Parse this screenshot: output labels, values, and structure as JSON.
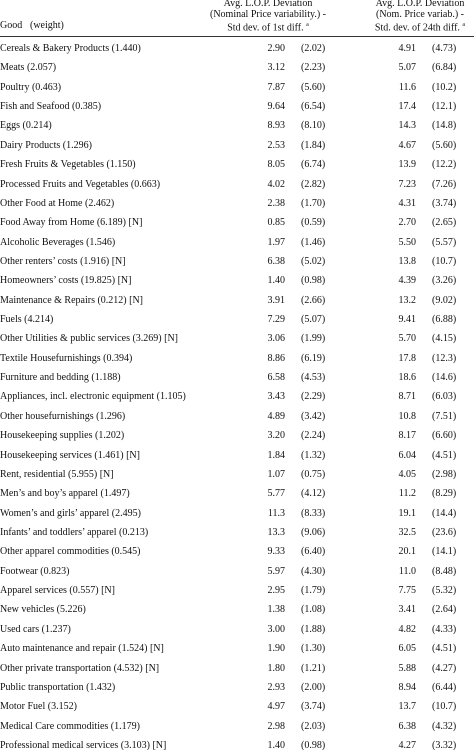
{
  "header": {
    "good": "Good",
    "weight": "(weight)",
    "col2": [
      "Avg. L.O.P. Deviation",
      "(Nominal Price variability.) -",
      "Std dev. of 1st diff."
    ],
    "col2_note": "a",
    "col3": [
      "Avg. L.O.P. Deviation",
      "(Nom. Price variab.) -",
      "Std. dev. of 24th diff."
    ],
    "col3_note": "a"
  },
  "table": {
    "rows": [
      [
        "Cereals & Bakery Products (1.440)",
        "2.90",
        "(2.02)",
        "4.91",
        "(4.73)"
      ],
      [
        "Meats (2.057)",
        "3.12",
        "(2.23)",
        "5.07",
        "(6.84)"
      ],
      [
        "Poultry (0.463)",
        "7.87",
        "(5.60)",
        "11.6",
        "(10.2)"
      ],
      [
        "Fish and Seafood (0.385)",
        "9.64",
        "(6.54)",
        "17.4",
        "(12.1)"
      ],
      [
        "Eggs (0.214)",
        "8.93",
        "(8.10)",
        "14.3",
        "(14.8)"
      ],
      [
        "Dairy Products (1.296)",
        "2.53",
        "(1.84)",
        "4.67",
        "(5.60)"
      ],
      [
        "Fresh Fruits & Vegetables (1.150)",
        "8.05",
        "(6.74)",
        "13.9",
        "(12.2)"
      ],
      [
        "Processed Fruits and Vegetables (0.663)",
        "4.02",
        "(2.82)",
        "7.23",
        "(7.26)"
      ],
      [
        "Other Food at Home (2.462)",
        "2.38",
        "(1.70)",
        "4.31",
        "(3.74)"
      ],
      [
        "Food Away from Home (6.189) [N]",
        "0.85",
        "(0.59)",
        "2.70",
        "(2.65)"
      ],
      [
        "Alcoholic Beverages (1.546)",
        "1.97",
        "(1.46)",
        "5.50",
        "(5.57)"
      ],
      [
        "Other renters’ costs (1.916) [N]",
        "6.38",
        "(5.02)",
        "13.8",
        "(10.7)"
      ],
      [
        "Homeowners’ costs (19.825) [N]",
        "1.40",
        "(0.98)",
        "4.39",
        "(3.26)"
      ],
      [
        "Maintenance & Repairs (0.212) [N]",
        "3.91",
        "(2.66)",
        "13.2",
        "(9.02)"
      ],
      [
        "Fuels (4.214)",
        "7.29",
        "(5.07)",
        "9.41",
        "(6.88)"
      ],
      [
        "Other Utilities & public services (3.269) [N]",
        "3.06",
        "(1.99)",
        "5.70",
        "(4.15)"
      ],
      [
        "Textile Housefurnishings (0.394)",
        "8.86",
        "(6.19)",
        "17.8",
        "(12.3)"
      ],
      [
        "Furniture and bedding (1.188)",
        "6.58",
        "(4.53)",
        "18.6",
        "(14.6)"
      ],
      [
        "Appliances, incl. electronic equipment (1.105)",
        "3.43",
        "(2.29)",
        "8.71",
        "(6.03)"
      ],
      [
        "Other housefurnishings (1.296)",
        "4.89",
        "(3.42)",
        "10.8",
        "(7.51)"
      ],
      [
        "Housekeeping supplies (1.202)",
        "3.20",
        "(2.24)",
        "8.17",
        "(6.60)"
      ],
      [
        "Housekeeping services (1.461) [N]",
        "1.84",
        "(1.32)",
        "6.04",
        "(4.51)"
      ],
      [
        "Rent, residential (5.955) [N]",
        "1.07",
        "(0.75)",
        "4.05",
        "(2.98)"
      ],
      [
        "Men’s and boy’s apparel (1.497)",
        "5.77",
        "(4.12)",
        "11.2",
        "(8.29)"
      ],
      [
        "Women’s and girls’ apparel (2.495)",
        "11.3",
        "(8.33)",
        "19.1",
        "(14.4)"
      ],
      [
        "Infants’ and toddlers’ apparel (0.213)",
        "13.3",
        "(9.06)",
        "32.5",
        "(23.6)"
      ],
      [
        "Other apparel commodities (0.545)",
        "9.33",
        "(6.40)",
        "20.1",
        "(14.1)"
      ],
      [
        "Footwear (0.823)",
        "5.97",
        "(4.30)",
        "11.0",
        "(8.48)"
      ],
      [
        "Apparel services (0.557) [N]",
        "2.95",
        "(1.79)",
        "7.75",
        "(5.32)"
      ],
      [
        "New vehicles (5.226)",
        "1.38",
        "(1.08)",
        "3.41",
        "(2.64)"
      ],
      [
        "Used cars (1.237)",
        "3.00",
        "(1.88)",
        "4.82",
        "(4.33)"
      ],
      [
        "Auto maintenance and repair (1.524) [N]",
        "1.90",
        "(1.30)",
        "6.05",
        "(4.51)"
      ],
      [
        "Other private transportation (4.532) [N]",
        "1.80",
        "(1.21)",
        "5.88",
        "(4.27)"
      ],
      [
        "Public transportation (1.432)",
        "2.93",
        "(2.00)",
        "8.94",
        "(6.44)"
      ],
      [
        "Motor Fuel (3.152)",
        "4.97",
        "(3.74)",
        "13.7",
        "(10.7)"
      ],
      [
        "Medical Care commodities (1.179)",
        "2.98",
        "(2.03)",
        "6.38",
        "(4.32)"
      ],
      [
        "Professional medical services (3.103) [N]",
        "1.40",
        "(0.98)",
        "4.27",
        "(3.32)"
      ]
    ]
  }
}
